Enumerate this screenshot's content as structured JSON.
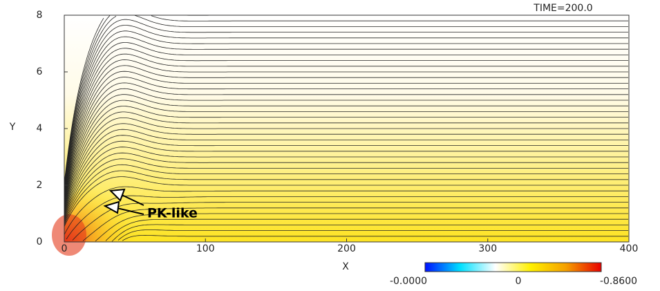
{
  "chart_data": {
    "type": "contour",
    "annotation": "TIME=200.0",
    "callout": "PK-like",
    "xlabel": "X",
    "ylabel": "Y",
    "xlim": [
      0,
      400
    ],
    "xticks": [
      0,
      100,
      200,
      300,
      400
    ],
    "ylim": [
      0,
      8
    ],
    "yticks": [
      0,
      2,
      4,
      6,
      8
    ],
    "colorbar": {
      "labels": [
        "-0.0000",
        "0",
        "-0.8600"
      ]
    }
  }
}
